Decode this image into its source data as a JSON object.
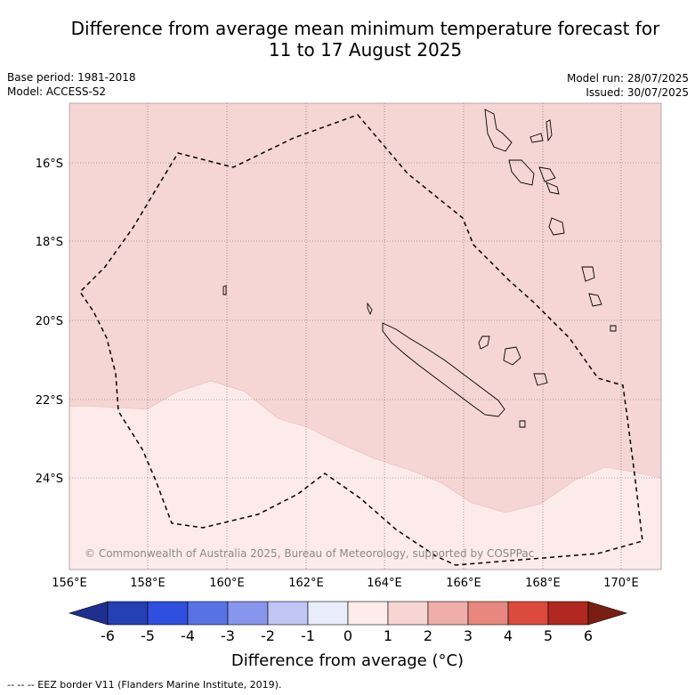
{
  "title_line1": "Difference from average mean minimum temperature forecast for",
  "title_line2": "11 to 17 August 2025",
  "base_period": "Base period: 1981-2018",
  "model": "Model: ACCESS-S2",
  "model_run": "Model run: 28/07/2025",
  "issued": "Issued: 30/07/2025",
  "lat_labels": [
    "16°S",
    "18°S",
    "20°S",
    "22°S",
    "24°S"
  ],
  "lon_labels": [
    "156°E",
    "158°E",
    "160°E",
    "162°E",
    "164°E",
    "166°E",
    "168°E",
    "170°E"
  ],
  "copyright": "© Commonwealth of Australia 2025, Bureau of Meteorology, supported by COSPPac",
  "colorbar": {
    "title": "Difference from average (°C)",
    "ticks": [
      "-6",
      "-5",
      "-4",
      "-3",
      "-2",
      "-1",
      "0",
      "1",
      "2",
      "3",
      "4",
      "5",
      "6"
    ],
    "colors": [
      "#1f2f8f",
      "#2540b4",
      "#2f4fe0",
      "#5872e6",
      "#8796ec",
      "#bfc6f4",
      "#e9ecfb",
      "#fdece9",
      "#f7d5d2",
      "#f0aeaa",
      "#e8877e",
      "#dc4a3e",
      "#b0281f",
      "#7a1e14"
    ]
  },
  "map_colors": {
    "anomaly_0_1": "#fcebea",
    "anomaly_1_2": "#f5d6d4"
  },
  "footer_legend": "-- -- -- EEZ border V11 (Flanders Marine Institute, 2019)."
}
